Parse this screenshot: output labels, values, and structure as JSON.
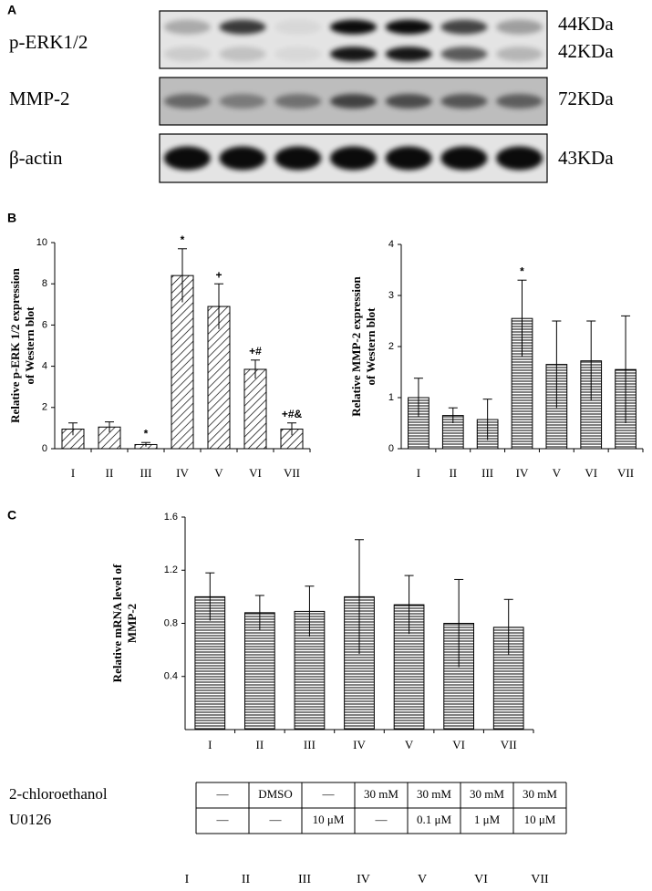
{
  "panel_labels": [
    "A",
    "B",
    "C"
  ],
  "blot": {
    "rows": [
      {
        "label": "p-ERK1/2",
        "sizes": [
          "44KDa",
          "42KDa"
        ]
      },
      {
        "label": "MMP-2",
        "sizes": [
          "72KDa"
        ]
      },
      {
        "label": "β-actin",
        "sizes": [
          "43KDa"
        ]
      }
    ]
  },
  "chart_data": [
    {
      "type": "bar",
      "y_label": [
        "Relative p-ERK 1/2 expression",
        "of Western blot"
      ],
      "categories": [
        "I",
        "II",
        "III",
        "IV",
        "V",
        "VI",
        "VII"
      ],
      "values": [
        0.95,
        1.05,
        0.2,
        8.4,
        6.9,
        3.85,
        0.95
      ],
      "errors": [
        0.3,
        0.25,
        0.1,
        1.3,
        1.1,
        0.45,
        0.3
      ],
      "annotations": [
        null,
        null,
        "*",
        "*",
        "+",
        "+#",
        "+#&"
      ],
      "hatch": "diagonal",
      "ylim": [
        0,
        10
      ],
      "yticks": [
        0,
        2,
        4,
        6,
        8,
        10
      ]
    },
    {
      "type": "bar",
      "y_label": [
        "Relative MMP-2 expression",
        "of Western blot"
      ],
      "categories": [
        "I",
        "II",
        "III",
        "IV",
        "V",
        "VI",
        "VII"
      ],
      "values": [
        1.0,
        0.65,
        0.57,
        2.55,
        1.65,
        1.72,
        1.55
      ],
      "errors": [
        0.38,
        0.15,
        0.4,
        0.75,
        0.85,
        0.78,
        1.05
      ],
      "annotations": [
        null,
        null,
        null,
        "*",
        null,
        null,
        null
      ],
      "hatch": "horizontal",
      "ylim": [
        0,
        4
      ],
      "yticks": [
        0,
        1,
        2,
        3,
        4
      ]
    },
    {
      "type": "bar",
      "y_label": [
        "Relative mRNA level of",
        "MMP-2"
      ],
      "categories": [
        "I",
        "II",
        "III",
        "IV",
        "V",
        "VI",
        "VII"
      ],
      "values": [
        1.0,
        0.88,
        0.89,
        1.0,
        0.94,
        0.8,
        0.77
      ],
      "errors": [
        0.18,
        0.13,
        0.19,
        0.43,
        0.22,
        0.33,
        0.21
      ],
      "annotations": [
        null,
        null,
        null,
        null,
        null,
        null,
        null
      ],
      "hatch": "horizontal",
      "ylim": [
        0,
        1.6
      ],
      "yticks": [
        0.4,
        0.8,
        1.2,
        1.6
      ]
    }
  ],
  "table": {
    "rows": [
      {
        "label": "2-chloroethanol",
        "cells": [
          "—",
          "DMSO",
          "—",
          "30 mM",
          "30 mM",
          "30 mM",
          "30 mM"
        ]
      },
      {
        "label": "U0126",
        "cells": [
          "—",
          "—",
          "10 μM",
          "—",
          "0.1 μM",
          "1 μM",
          "10 μM"
        ]
      }
    ],
    "columns": [
      "I",
      "II",
      "III",
      "IV",
      "V",
      "VI",
      "VII"
    ]
  }
}
